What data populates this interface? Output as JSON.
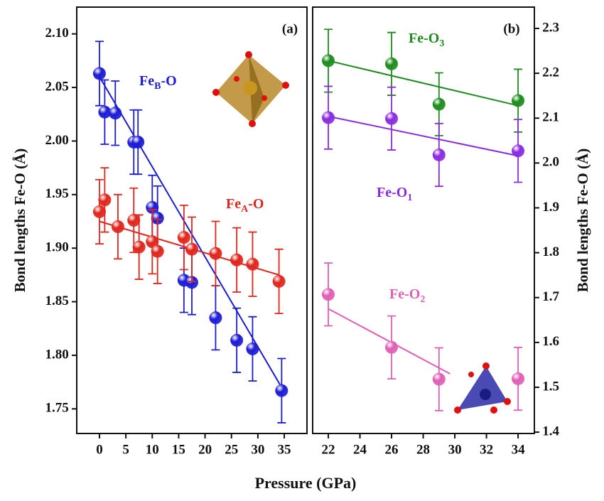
{
  "chart_data": [
    {
      "type": "scatter",
      "panel_label": "(a)",
      "ylabel": "Bond lengths Fe-O (Å)",
      "xlabel": "Pressure (GPa)",
      "xlim": [
        -4.3,
        39.3
      ],
      "ylim": [
        1.727,
        2.125
      ],
      "xticks": [
        0,
        5,
        10,
        15,
        20,
        25,
        30,
        35
      ],
      "yticks": [
        1.75,
        {
          "value": 1.8,
          "label": "1.80"
        },
        1.85,
        {
          "value": 1.9,
          "label": "1.90"
        },
        1.95,
        {
          "value": 2.0,
          "label": "2.00"
        },
        2.05,
        {
          "value": 2.1,
          "label": "2.10"
        }
      ],
      "series": [
        {
          "label": [
            "Fe",
            "B",
            "-O"
          ],
          "color": "#1c1cd6",
          "x": [
            0,
            1,
            3,
            6.5,
            7.3,
            10,
            11,
            16,
            17.5,
            22,
            26,
            29,
            34.5
          ],
          "values": [
            2.063,
            2.027,
            2.026,
            1.999,
            1.999,
            1.938,
            1.928,
            1.87,
            1.868,
            1.835,
            1.814,
            1.806,
            1.767
          ],
          "errors": [
            0.03,
            0.03,
            0.03,
            0.03,
            0.03,
            0.03,
            0.03,
            0.03,
            0.03,
            0.03,
            0.03,
            0.03,
            0.03
          ],
          "fit": {
            "x": [
              0,
              34.5
            ],
            "values": [
              2.06,
              1.77
            ]
          }
        },
        {
          "label": [
            "Fe",
            "A",
            "-O"
          ],
          "color": "#e0261c",
          "x": [
            0,
            1,
            3.5,
            6.5,
            7.5,
            10,
            11,
            16,
            17.5,
            22,
            26,
            29,
            34
          ],
          "values": [
            1.934,
            1.945,
            1.92,
            1.926,
            1.901,
            1.906,
            1.897,
            1.91,
            1.899,
            1.895,
            1.889,
            1.885,
            1.869
          ],
          "errors": [
            0.03,
            0.03,
            0.03,
            0.03,
            0.03,
            0.03,
            0.03,
            0.03,
            0.03,
            0.03,
            0.03,
            0.03,
            0.03
          ],
          "fit": {
            "x": [
              0,
              34
            ],
            "values": [
              1.925,
              1.875
            ]
          }
        }
      ]
    },
    {
      "type": "scatter",
      "panel_label": "(b)",
      "ylabel": "Bond lengths Fe-O (Å)",
      "xlim": [
        21.01,
        35.03
      ],
      "ylim": [
        1.397,
        2.3475
      ],
      "xticks": [
        22,
        24,
        26,
        28,
        30,
        32,
        34
      ],
      "yticks": [
        1.4,
        1.5,
        1.6,
        1.7,
        1.8,
        1.9,
        {
          "value": 2.0,
          "label": "2.0"
        },
        2.1,
        2.2,
        2.3
      ],
      "series": [
        {
          "label": [
            "Fe-O",
            "3",
            ""
          ],
          "color": "#1e8c1e",
          "x": [
            22,
            26,
            29,
            34
          ],
          "values": [
            2.228,
            2.221,
            2.131,
            2.139
          ],
          "errors": [
            0.07,
            0.07,
            0.07,
            0.07
          ],
          "fit": {
            "x": [
              22,
              34
            ],
            "values": [
              2.228,
              2.128
            ]
          }
        },
        {
          "label": [
            "Fe-O",
            "1",
            ""
          ],
          "color": "#8b2be0",
          "x": [
            22,
            26,
            29,
            34
          ],
          "values": [
            2.101,
            2.099,
            2.018,
            2.027
          ],
          "errors": [
            0.07,
            0.07,
            0.07,
            0.07
          ],
          "fit": {
            "x": [
              22,
              34
            ],
            "values": [
              2.104,
              2.016
            ]
          }
        },
        {
          "label": [
            "Fe-O",
            "2",
            ""
          ],
          "color": "#e05fb5",
          "x": [
            22,
            26,
            29,
            34
          ],
          "values": [
            1.707,
            1.589,
            1.518,
            1.519
          ],
          "errors": [
            0.07,
            0.07,
            0.07,
            0.07
          ],
          "fit": {
            "x": [
              22,
              29.7
            ],
            "values": [
              1.675,
              1.53
            ]
          }
        }
      ]
    }
  ]
}
